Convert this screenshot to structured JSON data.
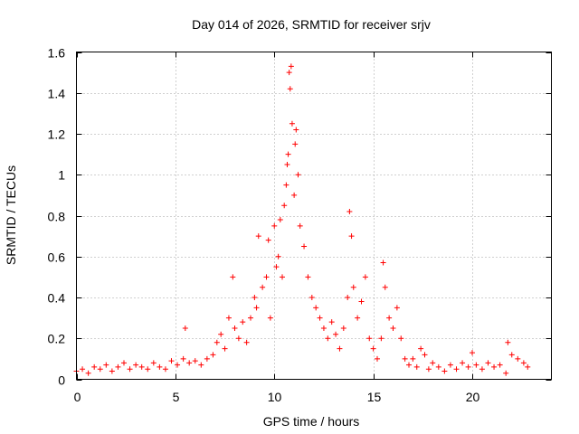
{
  "chart_data": {
    "type": "scatter",
    "title": "Day 014 of 2026, SRMTID for receiver srjv",
    "xlabel": "GPS time / hours",
    "ylabel": "SRMTID / TECUs",
    "xlim": [
      0,
      24
    ],
    "ylim": [
      0,
      1.6
    ],
    "xticks": [
      0,
      5,
      10,
      15,
      20
    ],
    "yticks": [
      0,
      0.2,
      0.4,
      0.6,
      0.8,
      1.0,
      1.2,
      1.4,
      1.6
    ],
    "xtick_labels": [
      "0",
      "5",
      "10",
      "15",
      "20"
    ],
    "ytick_labels": [
      "0",
      "0.2",
      "0.4",
      "0.6",
      "0.8",
      "1",
      "1.2",
      "1.4",
      "1.6"
    ],
    "grid": true,
    "marker": "+",
    "marker_color": "#ff0000",
    "series": [
      {
        "name": "SRMTID",
        "points": [
          [
            0.0,
            0.04
          ],
          [
            0.3,
            0.05
          ],
          [
            0.6,
            0.03
          ],
          [
            0.9,
            0.06
          ],
          [
            1.2,
            0.05
          ],
          [
            1.5,
            0.07
          ],
          [
            1.8,
            0.04
          ],
          [
            2.1,
            0.06
          ],
          [
            2.4,
            0.08
          ],
          [
            2.7,
            0.05
          ],
          [
            3.0,
            0.07
          ],
          [
            3.3,
            0.06
          ],
          [
            3.6,
            0.05
          ],
          [
            3.9,
            0.08
          ],
          [
            4.2,
            0.06
          ],
          [
            4.5,
            0.05
          ],
          [
            4.8,
            0.09
          ],
          [
            5.1,
            0.07
          ],
          [
            5.4,
            0.1
          ],
          [
            5.5,
            0.25
          ],
          [
            5.7,
            0.08
          ],
          [
            6.0,
            0.09
          ],
          [
            6.3,
            0.07
          ],
          [
            6.6,
            0.1
          ],
          [
            6.9,
            0.12
          ],
          [
            7.1,
            0.18
          ],
          [
            7.3,
            0.22
          ],
          [
            7.5,
            0.15
          ],
          [
            7.7,
            0.3
          ],
          [
            7.9,
            0.5
          ],
          [
            8.0,
            0.25
          ],
          [
            8.2,
            0.2
          ],
          [
            8.4,
            0.28
          ],
          [
            8.6,
            0.18
          ],
          [
            8.8,
            0.3
          ],
          [
            9.0,
            0.4
          ],
          [
            9.1,
            0.35
          ],
          [
            9.2,
            0.7
          ],
          [
            9.4,
            0.45
          ],
          [
            9.6,
            0.5
          ],
          [
            9.7,
            0.68
          ],
          [
            9.8,
            0.3
          ],
          [
            10.0,
            0.75
          ],
          [
            10.1,
            0.55
          ],
          [
            10.2,
            0.6
          ],
          [
            10.3,
            0.78
          ],
          [
            10.4,
            0.5
          ],
          [
            10.5,
            0.85
          ],
          [
            10.6,
            0.95
          ],
          [
            10.65,
            1.05
          ],
          [
            10.7,
            1.1
          ],
          [
            10.75,
            1.5
          ],
          [
            10.8,
            1.42
          ],
          [
            10.85,
            1.53
          ],
          [
            10.9,
            1.25
          ],
          [
            11.0,
            0.9
          ],
          [
            11.05,
            1.15
          ],
          [
            11.1,
            1.22
          ],
          [
            11.2,
            1.0
          ],
          [
            11.3,
            0.75
          ],
          [
            11.5,
            0.65
          ],
          [
            11.7,
            0.5
          ],
          [
            11.9,
            0.4
          ],
          [
            12.1,
            0.35
          ],
          [
            12.3,
            0.3
          ],
          [
            12.5,
            0.25
          ],
          [
            12.7,
            0.2
          ],
          [
            12.9,
            0.28
          ],
          [
            13.1,
            0.22
          ],
          [
            13.3,
            0.15
          ],
          [
            13.5,
            0.25
          ],
          [
            13.7,
            0.4
          ],
          [
            13.8,
            0.82
          ],
          [
            13.9,
            0.7
          ],
          [
            14.0,
            0.45
          ],
          [
            14.2,
            0.3
          ],
          [
            14.4,
            0.38
          ],
          [
            14.6,
            0.5
          ],
          [
            14.8,
            0.2
          ],
          [
            15.0,
            0.15
          ],
          [
            15.2,
            0.1
          ],
          [
            15.4,
            0.2
          ],
          [
            15.5,
            0.57
          ],
          [
            15.6,
            0.45
          ],
          [
            15.8,
            0.3
          ],
          [
            16.0,
            0.25
          ],
          [
            16.2,
            0.35
          ],
          [
            16.4,
            0.2
          ],
          [
            16.6,
            0.1
          ],
          [
            16.8,
            0.07
          ],
          [
            17.0,
            0.1
          ],
          [
            17.2,
            0.06
          ],
          [
            17.4,
            0.15
          ],
          [
            17.6,
            0.12
          ],
          [
            17.8,
            0.05
          ],
          [
            18.0,
            0.08
          ],
          [
            18.3,
            0.06
          ],
          [
            18.6,
            0.04
          ],
          [
            18.9,
            0.07
          ],
          [
            19.2,
            0.05
          ],
          [
            19.5,
            0.08
          ],
          [
            19.8,
            0.06
          ],
          [
            20.0,
            0.13
          ],
          [
            20.2,
            0.07
          ],
          [
            20.5,
            0.05
          ],
          [
            20.8,
            0.08
          ],
          [
            21.1,
            0.06
          ],
          [
            21.4,
            0.07
          ],
          [
            21.7,
            0.03
          ],
          [
            21.8,
            0.18
          ],
          [
            22.0,
            0.12
          ],
          [
            22.3,
            0.1
          ],
          [
            22.6,
            0.08
          ],
          [
            22.8,
            0.06
          ]
        ]
      }
    ]
  }
}
